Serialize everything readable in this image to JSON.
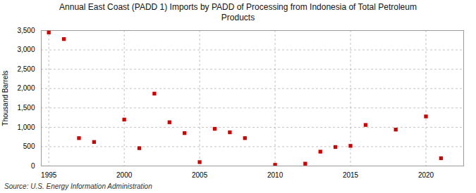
{
  "chart_data": {
    "type": "scatter",
    "title": "Annual East Coast (PADD 1) Imports by PADD of Processing from Indonesia of Total Petroleum\nProducts",
    "ylabel": "Thousand Barrels",
    "source": "Source: U.S. Energy Information Administration",
    "x": [
      1995,
      1996,
      1997,
      1998,
      1999,
      2000,
      2001,
      2002,
      2003,
      2004,
      2005,
      2006,
      2007,
      2008,
      2009,
      2010,
      2011,
      2012,
      2013,
      2014,
      2015,
      2016,
      2017,
      2018,
      2019,
      2020,
      2021
    ],
    "values": [
      3450,
      3280,
      720,
      620,
      null,
      1200,
      460,
      1870,
      1130,
      850,
      100,
      960,
      870,
      720,
      null,
      30,
      null,
      60,
      370,
      490,
      520,
      1060,
      null,
      940,
      null,
      1280,
      200
    ],
    "color": "#cc0000",
    "marker": "square",
    "xlim": [
      1994.5,
      2022.5
    ],
    "xticks": [
      1995,
      2000,
      2005,
      2010,
      2015,
      2020
    ],
    "ylim": [
      0,
      3500
    ],
    "yticks": [
      0,
      500,
      {
        "value": 1000,
        "label": "1,000"
      },
      {
        "value": 1500,
        "label": "1,500"
      },
      {
        "value": 2000,
        "label": "2,000"
      },
      {
        "value": 2500,
        "label": "2,500"
      },
      {
        "value": 3000,
        "label": "3,000"
      },
      {
        "value": 3500,
        "label": "3,500"
      }
    ],
    "grid": true
  }
}
